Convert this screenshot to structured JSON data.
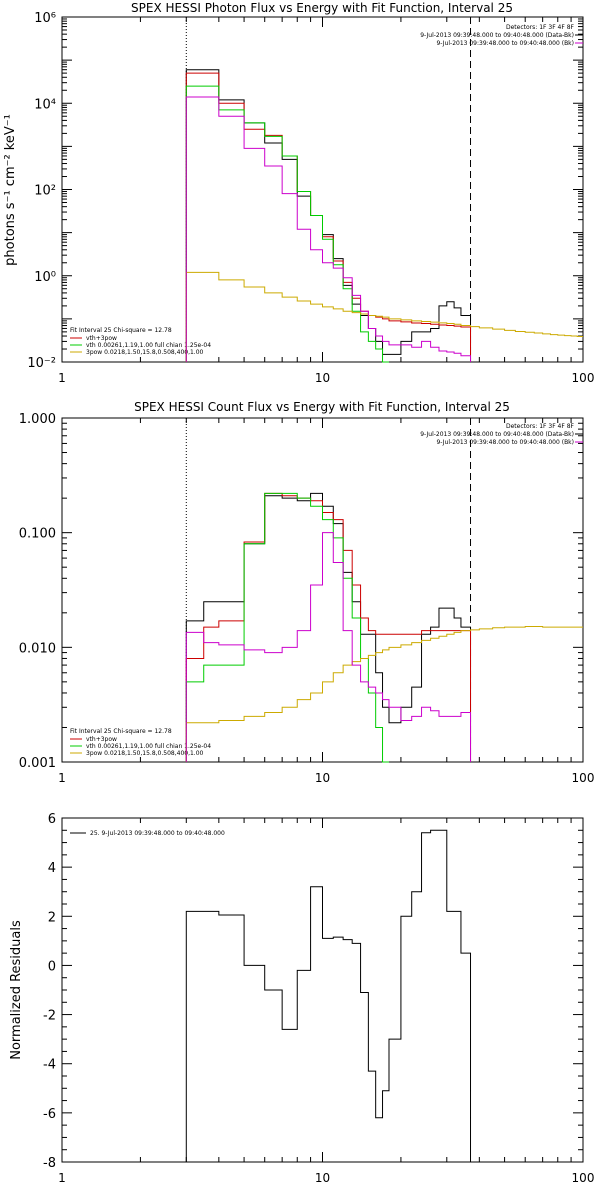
{
  "chart_data": [
    {
      "type": "line",
      "title": "SPEX HESSI Photon Flux vs Energy with Fit Function, Interval 25",
      "xlabel": "",
      "ylabel": "photons s⁻¹ cm⁻² keV⁻¹",
      "xscale": "log",
      "yscale": "log",
      "xlim": [
        1,
        100
      ],
      "ylim": [
        0.01,
        1000000
      ],
      "xticks": [
        {
          "v": 1,
          "label": "1"
        },
        {
          "v": 10,
          "label": "10"
        },
        {
          "v": 100,
          "label": "100"
        }
      ],
      "yticks": [
        {
          "v": 0.01,
          "label": "10⁻²"
        },
        {
          "v": 1,
          "label": "10⁰"
        },
        {
          "v": 100,
          "label": "10²"
        },
        {
          "v": 10000,
          "label": "10⁴"
        },
        {
          "v": 1000000,
          "label": "10⁶"
        }
      ],
      "vlines": [
        {
          "x": 3,
          "style": "dotted"
        },
        {
          "x": 37,
          "style": "dashed"
        }
      ],
      "legend_top": {
        "header": "Detectors: 1F 3F 4F 8F",
        "items": [
          {
            "text": "9-Jul-2013 09:39:48.000 to 09:40:48.000 (Data-Bk)",
            "color": "#000000"
          },
          {
            "text": "9-Jul-2013 09:39:48.000 to 09:40:48.000 (Bk)",
            "color": "#cc00cc"
          }
        ]
      },
      "legend_bottom": {
        "header": "Fit Interval 25  Chi-square = 12.78",
        "items": [
          {
            "text": "vth+3pow",
            "color": "#cc0000"
          },
          {
            "text": "vth 0.00261,1.19,1.00  full chian 1.25e-04",
            "color": "#00cc00"
          },
          {
            "text": "3pow 0.0218,1.50,15.8,0.508,400,1.00",
            "color": "#ccaa00"
          }
        ]
      },
      "series": [
        {
          "name": "Data-Bk",
          "color": "#000000",
          "step": true,
          "edges": [
            3,
            4,
            5,
            6,
            7,
            8,
            9,
            10,
            11,
            12,
            13,
            14,
            15,
            16,
            17,
            18,
            20,
            22,
            24,
            26,
            28,
            30,
            32,
            34,
            37
          ],
          "values": [
            60000,
            12000,
            3500,
            1200,
            500,
            70,
            25,
            9,
            2.5,
            0.6,
            0.22,
            0.12,
            0.06,
            0.03,
            0.015,
            0.015,
            0.03,
            0.05,
            0.05,
            0.06,
            0.2,
            0.25,
            0.18,
            0.12
          ]
        },
        {
          "name": "vth+3pow",
          "color": "#cc0000",
          "step": true,
          "edges": [
            3,
            4,
            5,
            6,
            7,
            8,
            9,
            10,
            11,
            12,
            13,
            14,
            15,
            16,
            17,
            18,
            20,
            22,
            24,
            26,
            28,
            30,
            32,
            34,
            37
          ],
          "values": [
            50000,
            10000,
            2500,
            1800,
            600,
            90,
            25,
            8,
            2.2,
            0.7,
            0.3,
            0.15,
            0.12,
            0.11,
            0.1,
            0.09,
            0.085,
            0.08,
            0.078,
            0.075,
            0.072,
            0.07,
            0.068,
            0.065
          ]
        },
        {
          "name": "vth",
          "color": "#00cc00",
          "step": true,
          "edges": [
            3,
            4,
            5,
            6,
            7,
            8,
            9,
            10,
            11,
            12,
            13,
            14,
            15,
            16,
            17,
            18
          ],
          "values": [
            25000,
            7000,
            3500,
            1700,
            600,
            90,
            25,
            7,
            1.8,
            0.5,
            0.15,
            0.05,
            0.03,
            0.02,
            0.01
          ]
        },
        {
          "name": "3pow",
          "color": "#ccaa00",
          "step": true,
          "edges": [
            3,
            4,
            5,
            6,
            7,
            8,
            9,
            10,
            11,
            12,
            13,
            14,
            15,
            16,
            17,
            18,
            20,
            22,
            24,
            26,
            28,
            30,
            32,
            34,
            37,
            40,
            45,
            50,
            55,
            60,
            65,
            70,
            75,
            80,
            85,
            90,
            95,
            100
          ],
          "values": [
            1.2,
            0.8,
            0.55,
            0.4,
            0.32,
            0.26,
            0.22,
            0.19,
            0.17,
            0.15,
            0.14,
            0.13,
            0.12,
            0.115,
            0.11,
            0.1,
            0.095,
            0.09,
            0.087,
            0.084,
            0.081,
            0.078,
            0.075,
            0.07,
            0.066,
            0.062,
            0.058,
            0.054,
            0.051,
            0.049,
            0.047,
            0.045,
            0.043,
            0.042,
            0.041,
            0.04,
            0.039
          ]
        },
        {
          "name": "Bk",
          "color": "#cc00cc",
          "step": true,
          "edges": [
            3,
            4,
            5,
            6,
            7,
            8,
            9,
            10,
            11,
            12,
            13,
            14,
            15,
            16,
            17,
            18,
            20,
            22,
            24,
            26,
            28,
            30,
            32,
            34,
            37
          ],
          "values": [
            14000,
            5000,
            900,
            350,
            80,
            12,
            4,
            2,
            1.5,
            0.9,
            0.35,
            0.15,
            0.06,
            0.04,
            0.03,
            0.025,
            0.025,
            0.022,
            0.03,
            0.022,
            0.018,
            0.017,
            0.016,
            0.014
          ]
        }
      ]
    },
    {
      "type": "line",
      "title": "SPEX HESSI Count Flux vs Energy with Fit Function, Interval 25",
      "xlabel": "",
      "ylabel": "",
      "xscale": "log",
      "yscale": "log",
      "xlim": [
        1,
        100
      ],
      "ylim": [
        0.001,
        1.0
      ],
      "xticks": [
        {
          "v": 1,
          "label": "1"
        },
        {
          "v": 10,
          "label": "10"
        },
        {
          "v": 100,
          "label": "100"
        }
      ],
      "yticks": [
        {
          "v": 0.001,
          "label": "0.001"
        },
        {
          "v": 0.01,
          "label": "0.010"
        },
        {
          "v": 0.1,
          "label": "0.100"
        },
        {
          "v": 1.0,
          "label": "1.000"
        }
      ],
      "vlines": [
        {
          "x": 3,
          "style": "dotted"
        },
        {
          "x": 37,
          "style": "dashed"
        }
      ],
      "legend_top": {
        "header": "Detectors: 1F 3F 4F 8F",
        "items": [
          {
            "text": "9-Jul-2013 09:39:48.000 to 09:40:48.000 (Data-Bk)",
            "color": "#000000"
          },
          {
            "text": "9-Jul-2013 09:39:48.000 to 09:40:48.000 (Bk)",
            "color": "#cc00cc"
          }
        ]
      },
      "legend_bottom": {
        "header": "Fit Interval 25  Chi-square = 12.78",
        "items": [
          {
            "text": "vth+3pow",
            "color": "#cc0000"
          },
          {
            "text": "vth 0.00261,1.19,1.00  full chian 1.25e-04",
            "color": "#00cc00"
          },
          {
            "text": "3pow 0.0218,1.50,15.8,0.508,400,1.00",
            "color": "#ccaa00"
          }
        ]
      },
      "series": [
        {
          "name": "Data-Bk",
          "color": "#000000",
          "step": true,
          "edges": [
            3,
            3.5,
            4,
            5,
            6,
            7,
            8,
            9,
            10,
            11,
            12,
            13,
            14,
            15,
            16,
            17,
            18,
            20,
            22,
            24,
            26,
            28,
            30,
            32,
            34,
            37
          ],
          "values": [
            0.017,
            0.025,
            0.025,
            0.08,
            0.21,
            0.2,
            0.19,
            0.22,
            0.17,
            0.12,
            0.045,
            0.025,
            0.013,
            0.013,
            0.006,
            0.003,
            0.0022,
            0.003,
            0.0045,
            0.013,
            0.015,
            0.022,
            0.022,
            0.018,
            0.015
          ]
        },
        {
          "name": "vth+3pow",
          "color": "#cc0000",
          "step": true,
          "edges": [
            3,
            3.5,
            4,
            5,
            6,
            7,
            8,
            9,
            10,
            11,
            12,
            13,
            14,
            15,
            16,
            17,
            18,
            20,
            22,
            24,
            26,
            28,
            30,
            32,
            34,
            37
          ],
          "values": [
            0.008,
            0.015,
            0.017,
            0.083,
            0.22,
            0.21,
            0.2,
            0.19,
            0.15,
            0.13,
            0.07,
            0.035,
            0.018,
            0.014,
            0.013,
            0.013,
            0.013,
            0.013,
            0.013,
            0.014,
            0.014,
            0.014,
            0.014,
            0.014,
            0.014
          ]
        },
        {
          "name": "vth",
          "color": "#00cc00",
          "step": true,
          "edges": [
            3,
            3.5,
            4,
            5,
            6,
            7,
            8,
            9,
            10,
            11,
            12,
            13,
            14,
            15,
            16,
            17,
            18
          ],
          "values": [
            0.005,
            0.007,
            0.007,
            0.08,
            0.22,
            0.22,
            0.2,
            0.17,
            0.13,
            0.09,
            0.04,
            0.018,
            0.008,
            0.004,
            0.002,
            0.001
          ]
        },
        {
          "name": "3pow",
          "color": "#ccaa00",
          "step": true,
          "edges": [
            3,
            4,
            5,
            6,
            7,
            8,
            9,
            10,
            11,
            12,
            13,
            14,
            15,
            16,
            17,
            18,
            20,
            22,
            24,
            26,
            28,
            30,
            32,
            34,
            37,
            40,
            45,
            50,
            55,
            60,
            65,
            70,
            75,
            80,
            85,
            90,
            95,
            100
          ],
          "values": [
            0.0022,
            0.0023,
            0.0025,
            0.0027,
            0.003,
            0.0035,
            0.004,
            0.005,
            0.006,
            0.007,
            0.0075,
            0.008,
            0.0085,
            0.009,
            0.0095,
            0.01,
            0.0105,
            0.011,
            0.0115,
            0.012,
            0.0125,
            0.013,
            0.0135,
            0.014,
            0.0142,
            0.0145,
            0.0148,
            0.015,
            0.015,
            0.0152,
            0.0152,
            0.015,
            0.015,
            0.015,
            0.015,
            0.015,
            0.015
          ]
        },
        {
          "name": "Bk",
          "color": "#cc00cc",
          "step": true,
          "edges": [
            3,
            3.5,
            4,
            5,
            6,
            7,
            8,
            9,
            10,
            11,
            12,
            13,
            14,
            15,
            16,
            17,
            18,
            20,
            22,
            24,
            26,
            28,
            30,
            32,
            34,
            37
          ],
          "values": [
            0.0135,
            0.011,
            0.0105,
            0.0095,
            0.009,
            0.01,
            0.014,
            0.035,
            0.1,
            0.055,
            0.014,
            0.007,
            0.005,
            0.0045,
            0.004,
            0.0035,
            0.003,
            0.0023,
            0.0025,
            0.003,
            0.0028,
            0.0025,
            0.0025,
            0.0025,
            0.0027
          ]
        }
      ]
    },
    {
      "type": "line",
      "title": "",
      "xlabel": "",
      "ylabel": "Normalized Residuals",
      "xscale": "log",
      "yscale": "linear",
      "xlim": [
        1,
        100
      ],
      "ylim": [
        -8,
        6
      ],
      "xticks": [
        {
          "v": 1,
          "label": "1"
        },
        {
          "v": 10,
          "label": "10"
        },
        {
          "v": 100,
          "label": "100"
        }
      ],
      "yticks": [
        {
          "v": -8,
          "label": "-8"
        },
        {
          "v": -6,
          "label": "-6"
        },
        {
          "v": -4,
          "label": "-4"
        },
        {
          "v": -2,
          "label": "-2"
        },
        {
          "v": 0,
          "label": "0"
        },
        {
          "v": 2,
          "label": "2"
        },
        {
          "v": 4,
          "label": "4"
        },
        {
          "v": 6,
          "label": "6"
        }
      ],
      "vlines": [],
      "legend_top": {
        "header": "",
        "items": [
          {
            "text": "25.  9-Jul-2013 09:39:48.000 to 09:40:48.000",
            "color": "#000000"
          }
        ]
      },
      "legend_bottom": {
        "header": "",
        "items": []
      },
      "series": [
        {
          "name": "25.  9-Jul-2013 09:39:48.000 to 09:40:48.000",
          "color": "#000000",
          "step": true,
          "drop_to_min": true,
          "edges": [
            3,
            4,
            5,
            6,
            7,
            8,
            9,
            10,
            11,
            12,
            13,
            14,
            15,
            16,
            17,
            18,
            20,
            22,
            24,
            26,
            28,
            30,
            32,
            34,
            37
          ],
          "values": [
            2.2,
            2.05,
            0,
            -1,
            -2.6,
            -0.2,
            3.2,
            1.1,
            1.15,
            1.05,
            0.9,
            -1.1,
            -4.3,
            -6.2,
            -5.1,
            -3.0,
            2.0,
            3.0,
            5.4,
            5.5,
            5.5,
            2.2,
            2.2,
            0.5
          ]
        }
      ]
    }
  ]
}
